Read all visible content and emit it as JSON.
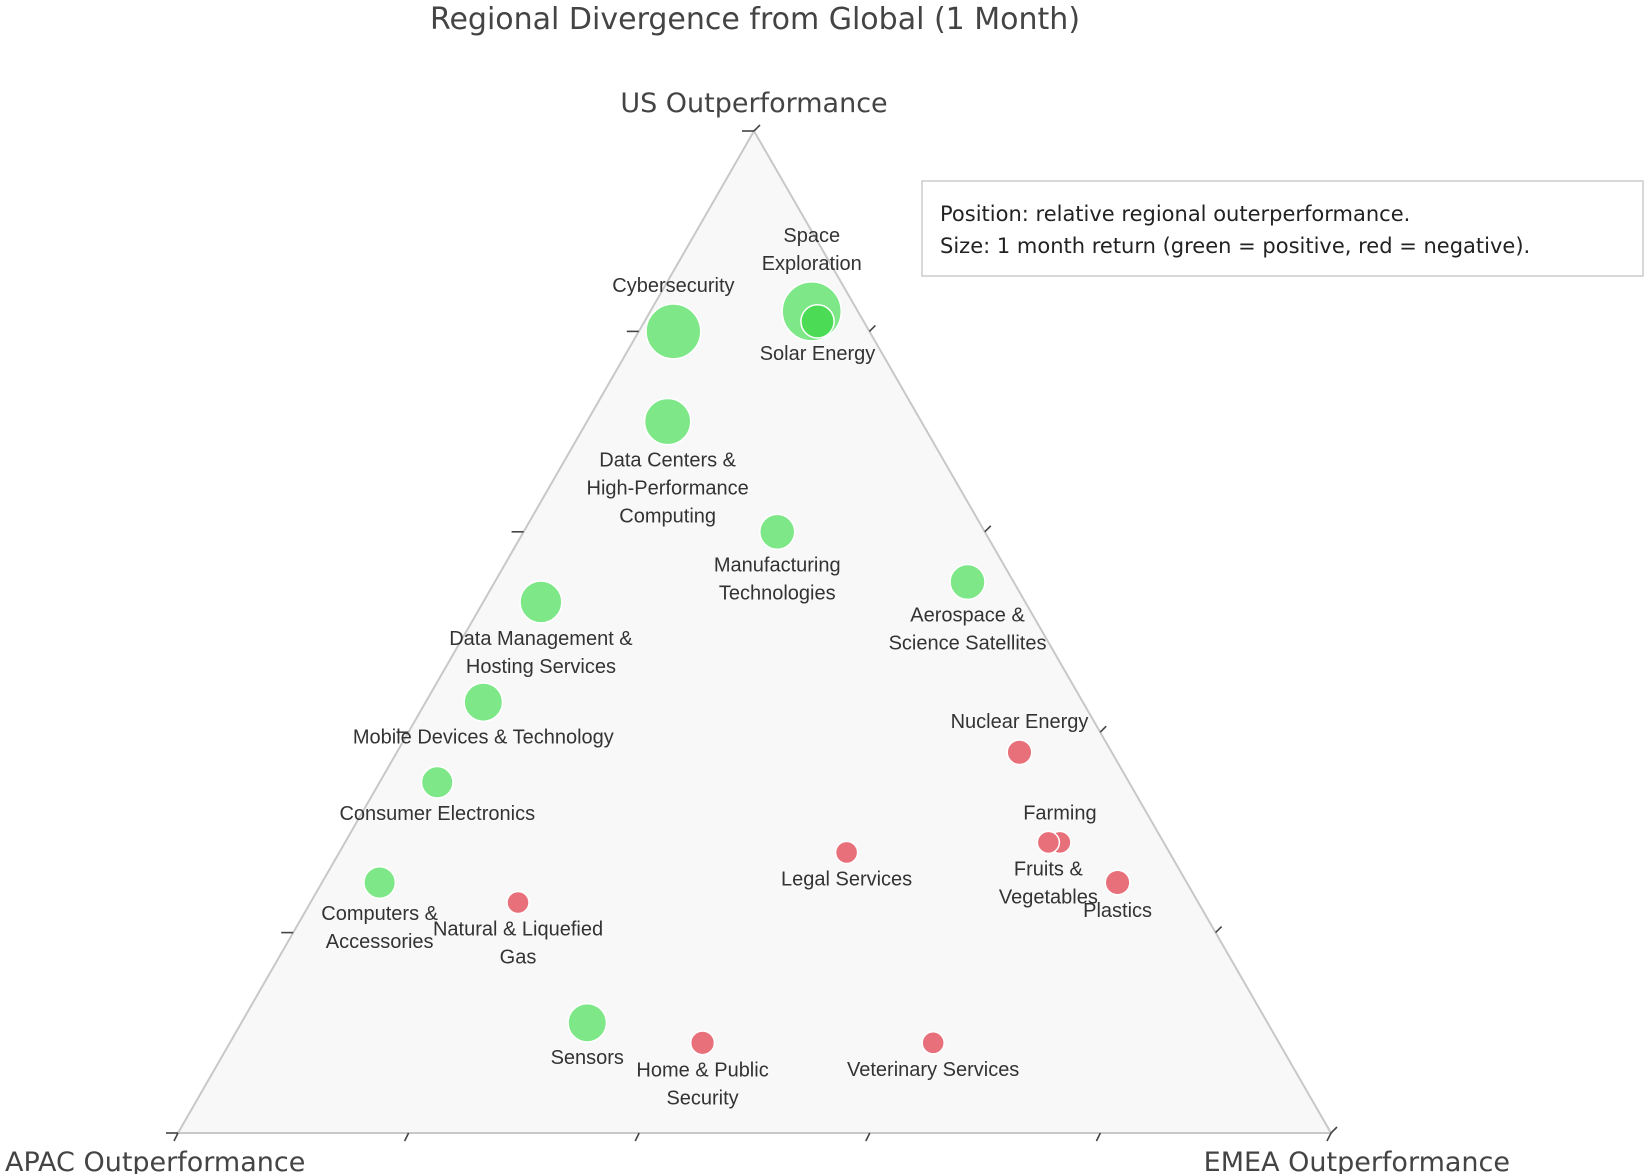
{
  "chart_data": {
    "type": "scatter",
    "subtype": "ternary",
    "title": "Regional Divergence from Global (1 Month)",
    "axes": {
      "top": "US Outperformance",
      "bottom_left": "APAC Outperformance",
      "bottom_right": "EMEA Outperformance"
    },
    "annotation": [
      "Position: relative regional outerperformance.",
      "Size: 1 month return (green = positive, red = negative)."
    ],
    "colors": {
      "positive": "#7ee787",
      "positive_strong": "#4cdb55",
      "negative": "#e8707a",
      "triangle_fill": "#f8f8f8",
      "triangle_edge": "#c8c8c8"
    },
    "points": [
      {
        "name": "Space Exploration",
        "label_lines": [
          "Space",
          "Exploration"
        ],
        "us": 0.82,
        "apac": 0.04,
        "emea": 0.14,
        "size": 5,
        "sign": "positive"
      },
      {
        "name": "Solar Energy",
        "label_lines": [
          "Solar Energy"
        ],
        "us": 0.81,
        "apac": 0.04,
        "emea": 0.15,
        "size": 2,
        "sign": "positive_strong"
      },
      {
        "name": "Cybersecurity",
        "label_lines": [
          "Cybersecurity"
        ],
        "us": 0.8,
        "apac": 0.17,
        "emea": 0.03,
        "size": 4.5,
        "sign": "positive"
      },
      {
        "name": "Data Centers & High-Performance Computing",
        "label_lines": [
          "Data Centers &",
          "High-Performance",
          "Computing"
        ],
        "us": 0.71,
        "apac": 0.22,
        "emea": 0.07,
        "size": 3.5,
        "sign": "positive"
      },
      {
        "name": "Manufacturing Technologies",
        "label_lines": [
          "Manufacturing",
          "Technologies"
        ],
        "us": 0.6,
        "apac": 0.18,
        "emea": 0.22,
        "size": 2.2,
        "sign": "positive"
      },
      {
        "name": "Aerospace & Science Satellites",
        "label_lines": [
          "Aerospace &",
          "Science Satellites"
        ],
        "us": 0.55,
        "apac": 0.04,
        "emea": 0.41,
        "size": 2.2,
        "sign": "positive"
      },
      {
        "name": "Data Management & Hosting Services",
        "label_lines": [
          "Data Management &",
          "Hosting Services"
        ],
        "us": 0.53,
        "apac": 0.42,
        "emea": 0.05,
        "size": 3,
        "sign": "positive"
      },
      {
        "name": "Mobile Devices & Technology",
        "label_lines": [
          "Mobile Devices & Technology"
        ],
        "us": 0.43,
        "apac": 0.52,
        "emea": 0.05,
        "size": 2.6,
        "sign": "positive"
      },
      {
        "name": "Nuclear Energy",
        "label_lines": [
          "Nuclear Energy"
        ],
        "us": 0.38,
        "apac": 0.08,
        "emea": 0.54,
        "size": 1,
        "sign": "negative"
      },
      {
        "name": "Consumer Electronics",
        "label_lines": [
          "Consumer Electronics"
        ],
        "us": 0.35,
        "apac": 0.6,
        "emea": 0.05,
        "size": 1.8,
        "sign": "positive"
      },
      {
        "name": "Farming",
        "label_lines": [
          "Farming"
        ],
        "us": 0.29,
        "apac": 0.09,
        "emea": 0.62,
        "size": 0.7,
        "sign": "negative"
      },
      {
        "name": "Fruits & Vegetables",
        "label_lines": [
          "Fruits &",
          "Vegetables"
        ],
        "us": 0.29,
        "apac": 0.1,
        "emea": 0.61,
        "size": 0.7,
        "sign": "negative"
      },
      {
        "name": "Legal Services",
        "label_lines": [
          "Legal Services"
        ],
        "us": 0.28,
        "apac": 0.28,
        "emea": 0.44,
        "size": 0.7,
        "sign": "negative"
      },
      {
        "name": "Plastics",
        "label_lines": [
          "Plastics"
        ],
        "us": 0.25,
        "apac": 0.06,
        "emea": 0.69,
        "size": 1,
        "sign": "negative"
      },
      {
        "name": "Computers & Accessories",
        "label_lines": [
          "Computers &",
          "Accessories"
        ],
        "us": 0.25,
        "apac": 0.7,
        "emea": 0.05,
        "size": 1.8,
        "sign": "positive"
      },
      {
        "name": "Natural & Liquefied Gas",
        "label_lines": [
          "Natural & Liquefied",
          "Gas"
        ],
        "us": 0.23,
        "apac": 0.59,
        "emea": 0.18,
        "size": 0.7,
        "sign": "negative"
      },
      {
        "name": "Sensors",
        "label_lines": [
          "Sensors"
        ],
        "us": 0.11,
        "apac": 0.59,
        "emea": 0.3,
        "size": 2.6,
        "sign": "positive"
      },
      {
        "name": "Home & Public Security",
        "label_lines": [
          "Home & Public",
          "Security"
        ],
        "us": 0.09,
        "apac": 0.5,
        "emea": 0.41,
        "size": 0.9,
        "sign": "negative"
      },
      {
        "name": "Veterinary Services",
        "label_lines": [
          "Veterinary Services"
        ],
        "us": 0.09,
        "apac": 0.3,
        "emea": 0.61,
        "size": 0.7,
        "sign": "negative"
      }
    ]
  }
}
